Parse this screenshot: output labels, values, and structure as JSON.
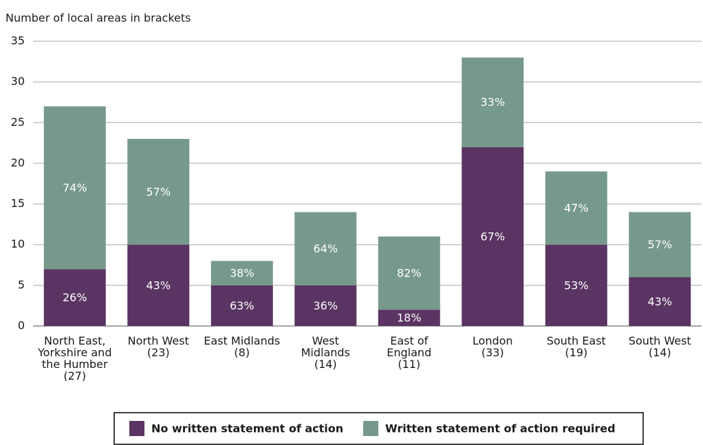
{
  "chart_data": {
    "type": "stacked_bar",
    "title": "Number of local areas in brackets",
    "categories": [
      "North East,\nYorkshire and\nthe Humber\n(27)",
      "North West\n(23)",
      "East Midlands\n(8)",
      "West\nMidlands\n(14)",
      "East of\nEngland\n(11)",
      "London\n(33)",
      "South East\n(19)",
      "South West\n(14)"
    ],
    "series": [
      {
        "name": "No written statement of action",
        "color": "#5a3462",
        "values": [
          7,
          10,
          5,
          5,
          2,
          22,
          10,
          6
        ],
        "value_labels": [
          "26%",
          "43%",
          "63%",
          "36%",
          "18%",
          "67%",
          "53%",
          "43%"
        ]
      },
      {
        "name": "Written statement of action required",
        "color": "#76998c",
        "values": [
          20,
          13,
          3,
          9,
          9,
          11,
          9,
          8
        ],
        "value_labels": [
          "74%",
          "57%",
          "38%",
          "64%",
          "82%",
          "33%",
          "47%",
          "57%"
        ]
      }
    ],
    "ylim": [
      0,
      35
    ],
    "yticks": [
      0,
      5,
      10,
      15,
      20,
      25,
      30,
      35
    ],
    "grid": true,
    "legend": "bottom"
  }
}
